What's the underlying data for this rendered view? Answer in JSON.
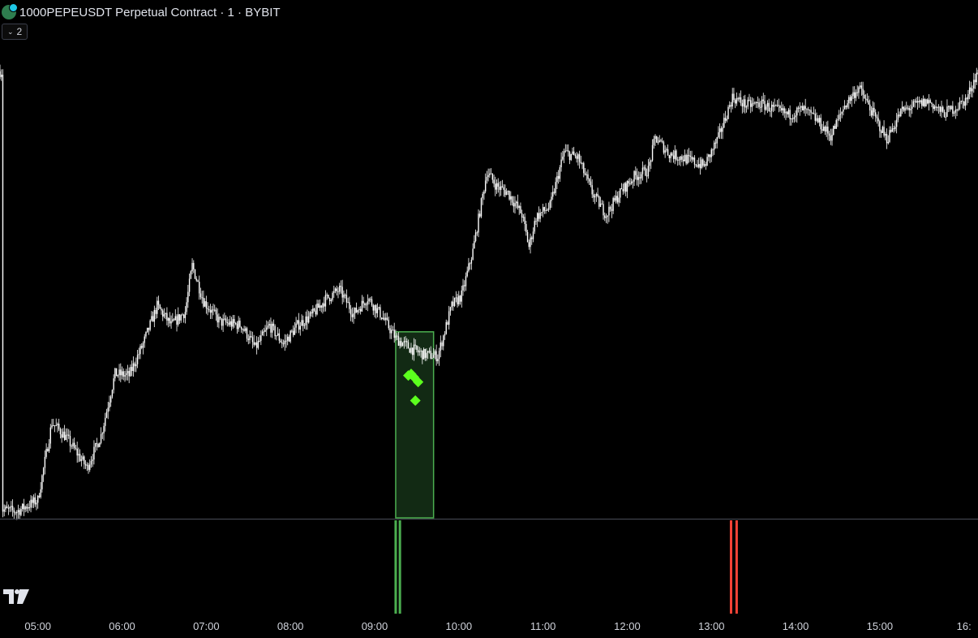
{
  "header": {
    "logo_icon": "exchange-coin-icon",
    "title": "1000PEPEUSDT Perpetual Contract · 1 · BYBIT",
    "indicator_count": "2"
  },
  "colors": {
    "background": "#000000",
    "candle": "#ffffff",
    "zone_stroke": "#4caf50",
    "zone_fill": "#122a14",
    "diamond": "#5cff1e",
    "bull_bar": "#4caf50",
    "bear_bar": "#f44336"
  },
  "chart_data": {
    "type": "candlestick",
    "symbol": "1000PEPEUSDT",
    "interval": "1",
    "exchange": "BYBIT",
    "x_ticks": [
      "05:00",
      "06:00",
      "07:00",
      "08:00",
      "09:00",
      "10:00",
      "11:00",
      "12:00",
      "13:00",
      "14:00",
      "15:00",
      "16:"
    ],
    "price_path": [
      {
        "t": "04:35",
        "p": 10
      },
      {
        "t": "04:45",
        "p": 8
      },
      {
        "t": "05:00",
        "p": 22
      },
      {
        "t": "05:10",
        "p": 118
      },
      {
        "t": "05:20",
        "p": 100
      },
      {
        "t": "05:35",
        "p": 62
      },
      {
        "t": "05:45",
        "p": 102
      },
      {
        "t": "05:55",
        "p": 178
      },
      {
        "t": "06:05",
        "p": 176
      },
      {
        "t": "06:15",
        "p": 215
      },
      {
        "t": "06:25",
        "p": 262
      },
      {
        "t": "06:35",
        "p": 238
      },
      {
        "t": "06:45",
        "p": 255
      },
      {
        "t": "06:50",
        "p": 312
      },
      {
        "t": "06:58",
        "p": 268
      },
      {
        "t": "07:10",
        "p": 242
      },
      {
        "t": "07:25",
        "p": 238
      },
      {
        "t": "07:35",
        "p": 210
      },
      {
        "t": "07:45",
        "p": 238
      },
      {
        "t": "07:55",
        "p": 215
      },
      {
        "t": "08:05",
        "p": 238
      },
      {
        "t": "08:15",
        "p": 250
      },
      {
        "t": "08:25",
        "p": 270
      },
      {
        "t": "08:35",
        "p": 282
      },
      {
        "t": "08:45",
        "p": 252
      },
      {
        "t": "08:55",
        "p": 272
      },
      {
        "t": "09:05",
        "p": 250
      },
      {
        "t": "09:15",
        "p": 222
      },
      {
        "t": "09:25",
        "p": 210
      },
      {
        "t": "09:35",
        "p": 202
      },
      {
        "t": "09:45",
        "p": 200
      },
      {
        "t": "09:55",
        "p": 262
      },
      {
        "t": "10:02",
        "p": 275
      },
      {
        "t": "10:10",
        "p": 330
      },
      {
        "t": "10:20",
        "p": 428
      },
      {
        "t": "10:27",
        "p": 410
      },
      {
        "t": "10:35",
        "p": 402
      },
      {
        "t": "10:45",
        "p": 375
      },
      {
        "t": "10:50",
        "p": 335
      },
      {
        "t": "10:55",
        "p": 372
      },
      {
        "t": "11:05",
        "p": 385
      },
      {
        "t": "11:15",
        "p": 452
      },
      {
        "t": "11:25",
        "p": 445
      },
      {
        "t": "11:35",
        "p": 402
      },
      {
        "t": "11:45",
        "p": 375
      },
      {
        "t": "11:55",
        "p": 402
      },
      {
        "t": "12:05",
        "p": 422
      },
      {
        "t": "12:15",
        "p": 430
      },
      {
        "t": "12:20",
        "p": 470
      },
      {
        "t": "12:30",
        "p": 450
      },
      {
        "t": "12:40",
        "p": 445
      },
      {
        "t": "12:55",
        "p": 435
      },
      {
        "t": "13:05",
        "p": 470
      },
      {
        "t": "13:15",
        "p": 520
      },
      {
        "t": "13:25",
        "p": 510
      },
      {
        "t": "13:35",
        "p": 512
      },
      {
        "t": "13:45",
        "p": 505
      },
      {
        "t": "13:55",
        "p": 498
      },
      {
        "t": "14:05",
        "p": 505
      },
      {
        "t": "14:15",
        "p": 492
      },
      {
        "t": "14:25",
        "p": 472
      },
      {
        "t": "14:35",
        "p": 510
      },
      {
        "t": "14:45",
        "p": 532
      },
      {
        "t": "14:55",
        "p": 500
      },
      {
        "t": "15:05",
        "p": 468
      },
      {
        "t": "15:15",
        "p": 502
      },
      {
        "t": "15:25",
        "p": 510
      },
      {
        "t": "15:35",
        "p": 515
      },
      {
        "t": "15:45",
        "p": 500
      },
      {
        "t": "15:55",
        "p": 508
      },
      {
        "t": "16:02",
        "p": 518
      },
      {
        "t": "16:08",
        "p": 545
      },
      {
        "t": "16:10",
        "p": 552
      }
    ],
    "price_range": [
      0,
      580
    ],
    "time_range": [
      "04:33",
      "16:10"
    ],
    "zone": {
      "t_start": "09:15",
      "t_end": "09:42",
      "p_top": 230,
      "p_bottom": 0
    },
    "diamond_markers": [
      {
        "t": "09:24",
        "p": 176
      },
      {
        "t": "09:26",
        "p": 178
      },
      {
        "t": "09:28",
        "p": 174
      },
      {
        "t": "09:31",
        "p": 168
      },
      {
        "t": "09:29",
        "p": 145
      }
    ],
    "signal_bars": [
      {
        "t": "09:15",
        "side": "bull"
      },
      {
        "t": "09:18",
        "side": "bull"
      },
      {
        "t": "13:14",
        "side": "bear"
      },
      {
        "t": "13:18",
        "side": "bear"
      }
    ],
    "grid": false
  }
}
